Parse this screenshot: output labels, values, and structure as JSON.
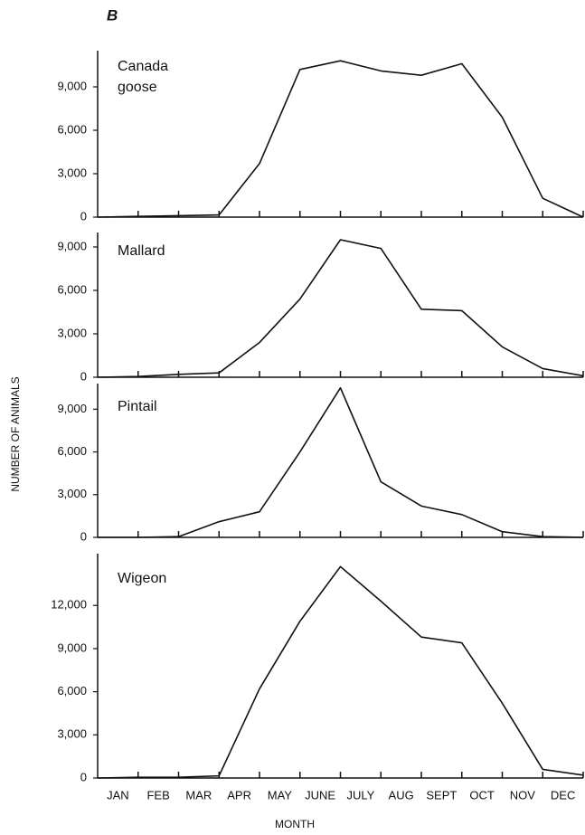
{
  "figure": {
    "label": "B",
    "ylabel": "NUMBER OF ANIMALS",
    "xlabel": "MONTH",
    "months": [
      "JAN",
      "FEB",
      "MAR",
      "APR",
      "MAY",
      "JUNE",
      "JULY",
      "AUG",
      "SEPT",
      "OCT",
      "NOV",
      "DEC"
    ]
  },
  "chart_data": [
    {
      "type": "line",
      "title": "Canada goose",
      "x": [
        0,
        1,
        2,
        3,
        4,
        5,
        6,
        7,
        8,
        9,
        10,
        11,
        12
      ],
      "xlim": [
        0,
        12
      ],
      "series": [
        {
          "name": "Canada goose",
          "color": "#111111",
          "values": [
            0,
            50,
            100,
            150,
            3700,
            10200,
            10800,
            10100,
            9800,
            10600,
            6900,
            1300,
            0
          ]
        }
      ],
      "ylim": [
        0,
        11500
      ],
      "yticks": [
        0,
        {
          "value": 3000,
          "label": "3,000"
        },
        {
          "value": 6000,
          "label": "6,000"
        },
        {
          "value": 9000,
          "label": "9,000"
        }
      ]
    },
    {
      "type": "line",
      "title": "Mallard",
      "x": [
        0,
        1,
        2,
        3,
        4,
        5,
        6,
        7,
        8,
        9,
        10,
        11,
        12
      ],
      "xlim": [
        0,
        12
      ],
      "series": [
        {
          "name": "Mallard",
          "color": "#111111",
          "values": [
            0,
            50,
            200,
            300,
            2400,
            5400,
            9500,
            8900,
            4700,
            4600,
            2100,
            600,
            100
          ]
        }
      ],
      "ylim": [
        0,
        10000
      ],
      "yticks": [
        0,
        {
          "value": 3000,
          "label": "3,000"
        },
        {
          "value": 6000,
          "label": "6,000"
        },
        {
          "value": 9000,
          "label": "9,000"
        }
      ]
    },
    {
      "type": "line",
      "title": "Pintail",
      "x": [
        0,
        1,
        2,
        3,
        4,
        5,
        6,
        7,
        8,
        9,
        10,
        11,
        12
      ],
      "xlim": [
        0,
        12
      ],
      "series": [
        {
          "name": "Pintail",
          "color": "#111111",
          "values": [
            0,
            0,
            50,
            1100,
            1800,
            6000,
            10500,
            3900,
            2200,
            1600,
            400,
            50,
            0
          ]
        }
      ],
      "ylim": [
        0,
        10800
      ],
      "yticks": [
        0,
        {
          "value": 3000,
          "label": "3,000"
        },
        {
          "value": 6000,
          "label": "6,000"
        },
        {
          "value": 9000,
          "label": "9,000"
        }
      ]
    },
    {
      "type": "line",
      "title": "Wigeon",
      "x": [
        0,
        1,
        2,
        3,
        4,
        5,
        6,
        7,
        8,
        9,
        10,
        11,
        12
      ],
      "xlim": [
        0,
        12
      ],
      "series": [
        {
          "name": "Wigeon",
          "color": "#111111",
          "values": [
            0,
            50,
            50,
            150,
            6200,
            10900,
            14700,
            12300,
            9800,
            9400,
            5200,
            600,
            200
          ]
        }
      ],
      "ylim": [
        0,
        15600
      ],
      "yticks": [
        0,
        {
          "value": 3000,
          "label": "3,000"
        },
        {
          "value": 6000,
          "label": "6,000"
        },
        {
          "value": 9000,
          "label": "9,000"
        },
        {
          "value": 12000,
          "label": "12,000"
        }
      ]
    }
  ]
}
